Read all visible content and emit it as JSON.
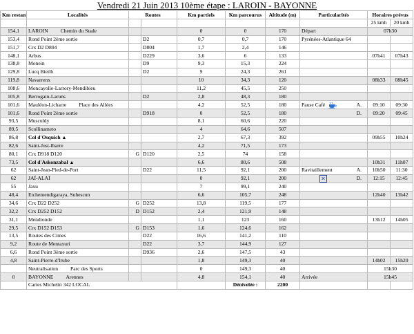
{
  "title": "Vendredi 21 Juin 2013 10ème étape : LAROIN - BAYONNE",
  "headers": {
    "km_restants": "Km restants",
    "localites": "Localités",
    "routes": "Routes",
    "km_partiels": "Km partiels",
    "km_parcourus": "Km parcourus",
    "altitude": "Altitude (m)",
    "particularites": "Particularités",
    "horaires": "Horaires prévus",
    "speed1": "25 kmh",
    "speed2": "20 kmh"
  },
  "rows": [
    {
      "kmr": "154,1",
      "loc": "LAROIN",
      "sub": "Chemin du Stade",
      "dir": "",
      "route": "",
      "kmp": "0",
      "kmc": "0",
      "alt": "170",
      "part": "Départ",
      "pl": "",
      "h1": "07h30",
      "h2": "",
      "style": "bold shade",
      "hspan": true
    },
    {
      "kmr": "153,4",
      "loc": "Rond Point 2ème sortie",
      "sub": "",
      "dir": "",
      "route": "D2",
      "kmp": "0,7",
      "kmc": "0,7",
      "alt": "170",
      "part": "Pyrénées-Atlantique 64",
      "pl": "",
      "h1": "",
      "h2": "",
      "style": ""
    },
    {
      "kmr": "151,7",
      "loc": "Crx D2 D804",
      "sub": "",
      "dir": "",
      "route": "D804",
      "kmp": "1,7",
      "kmc": "2,4",
      "alt": "146",
      "part": "",
      "pl": "",
      "h1": "",
      "h2": "",
      "style": ""
    },
    {
      "kmr": "148,1",
      "loc": "Arbus",
      "sub": "",
      "dir": "",
      "route": "D229",
      "kmp": "3,6",
      "kmc": "6",
      "alt": "133",
      "part": "",
      "pl": "",
      "h1": "07h41",
      "h2": "07h43",
      "style": ""
    },
    {
      "kmr": "138,8",
      "loc": "Monein",
      "sub": "",
      "dir": "",
      "route": "D9",
      "kmp": "9,3",
      "kmc": "15,3",
      "alt": "224",
      "part": "",
      "pl": "",
      "h1": "",
      "h2": "",
      "style": ""
    },
    {
      "kmr": "129,8",
      "loc": "Lucq Bieilh",
      "sub": "",
      "dir": "",
      "route": "D2",
      "kmp": "9",
      "kmc": "24,3",
      "alt": "261",
      "part": "",
      "pl": "",
      "h1": "",
      "h2": "",
      "style": ""
    },
    {
      "kmr": "119,8",
      "loc": "Navarrenx",
      "sub": "",
      "dir": "",
      "route": "",
      "kmp": "10",
      "kmc": "34,3",
      "alt": "120",
      "part": "",
      "pl": "",
      "h1": "08h33",
      "h2": "08h45",
      "style": "shade"
    },
    {
      "kmr": "108,6",
      "loc": "Moncayolle-Larrory-Mendibieu",
      "sub": "",
      "dir": "",
      "route": "",
      "kmp": "11,2",
      "kmc": "45,5",
      "alt": "250",
      "part": "",
      "pl": "",
      "h1": "",
      "h2": "",
      "style": ""
    },
    {
      "kmr": "105,8",
      "loc": "Berrogain-Laruns",
      "sub": "",
      "dir": "",
      "route": "D2",
      "kmp": "2,8",
      "kmc": "48,3",
      "alt": "180",
      "part": "",
      "pl": "",
      "h1": "",
      "h2": "",
      "style": "shade"
    },
    {
      "kmr": "101,6",
      "loc": "Mauléon-Licharre",
      "sub": "Place des Allées",
      "dir": "",
      "route": "",
      "kmp": "4,2",
      "kmc": "52,5",
      "alt": "180",
      "part": "Pause Café",
      "pl": "A.",
      "h1": "09:10",
      "h2": "09:30",
      "style": "bold",
      "icon": "cup"
    },
    {
      "kmr": "101,6",
      "loc": "Rond Point 2ème sortie",
      "sub": "",
      "dir": "",
      "route": "D918",
      "kmp": "0",
      "kmc": "52,5",
      "alt": "180",
      "part": "",
      "pl": "D.",
      "h1": "09:20",
      "h2": "09:45",
      "style": "bold shade"
    },
    {
      "kmr": "93,5",
      "loc": "Musculdy",
      "sub": "",
      "dir": "",
      "route": "",
      "kmp": "8,1",
      "kmc": "60,6",
      "alt": "220",
      "part": "",
      "pl": "",
      "h1": "",
      "h2": "",
      "style": ""
    },
    {
      "kmr": "89,5",
      "loc": "Scollinameto",
      "sub": "",
      "dir": "",
      "route": "",
      "kmp": "4",
      "kmc": "64,6",
      "alt": "507",
      "part": "",
      "pl": "",
      "h1": "",
      "h2": "",
      "style": "shade"
    },
    {
      "kmr": "86,8",
      "loc": "Col d'Osquich",
      "sub": "",
      "tri": "▲",
      "dir": "",
      "route": "",
      "kmp": "2,7",
      "kmc": "67,3",
      "alt": "392",
      "part": "",
      "pl": "",
      "h1": "09h55",
      "h2": "10h24",
      "style": "boldloc"
    },
    {
      "kmr": "82,6",
      "loc": "Saint-Just-Ibarre",
      "sub": "",
      "dir": "",
      "route": "",
      "kmp": "4,2",
      "kmc": "71,5",
      "alt": "173",
      "part": "",
      "pl": "",
      "h1": "",
      "h2": "",
      "style": "shade"
    },
    {
      "kmr": "80,1",
      "loc": "Crx D918 D120",
      "sub": "",
      "dir": "G",
      "route": "D120",
      "kmp": "2,5",
      "kmc": "74",
      "alt": "158",
      "part": "",
      "pl": "",
      "h1": "",
      "h2": "",
      "style": ""
    },
    {
      "kmr": "73,5",
      "loc": "Col d'Askonzabal",
      "sub": "",
      "tri": "▲",
      "dir": "",
      "route": "",
      "kmp": "6,6",
      "kmc": "80,6",
      "alt": "508",
      "part": "",
      "pl": "",
      "h1": "10h31",
      "h2": "11h07",
      "style": "shade boldloc"
    },
    {
      "kmr": "62",
      "loc": "Saint-Jean-Pied-de-Port",
      "sub": "",
      "dir": "",
      "route": "D22",
      "kmp": "11,5",
      "kmc": "92,1",
      "alt": "200",
      "part": "Ravitaillement",
      "pl": "A.",
      "h1": "10h50",
      "h2": "11:30",
      "style": "bold"
    },
    {
      "kmr": "62",
      "loc": "JAÏ-ALAÏ",
      "sub": "",
      "dir": "",
      "route": "",
      "kmp": "0",
      "kmc": "92,1",
      "alt": "200",
      "part": "",
      "pl": "D.",
      "h1": "12:15",
      "h2": "12:45",
      "style": "bold shade",
      "icon": "box"
    },
    {
      "kmr": "55",
      "loc": "Jaxu",
      "sub": "",
      "dir": "",
      "route": "",
      "kmp": "7",
      "kmc": "99,1",
      "alt": "240",
      "part": "",
      "pl": "",
      "h1": "",
      "h2": "",
      "style": ""
    },
    {
      "kmr": "48,4",
      "loc": "Etchemendigaraya, Suhescun",
      "sub": "",
      "dir": "",
      "route": "",
      "kmp": "6,6",
      "kmc": "105,7",
      "alt": "248",
      "part": "",
      "pl": "",
      "h1": "12h40",
      "h2": "13h42",
      "style": "shade"
    },
    {
      "kmr": "34,6",
      "loc": "Crx D22 D252",
      "sub": "",
      "dir": "G",
      "route": "D252",
      "kmp": "13,8",
      "kmc": "119,5",
      "alt": "177",
      "part": "",
      "pl": "",
      "h1": "",
      "h2": "",
      "style": ""
    },
    {
      "kmr": "32,2",
      "loc": "Crx D252 D152",
      "sub": "",
      "dir": "D",
      "route": "D152",
      "kmp": "2,4",
      "kmc": "121,9",
      "alt": "148",
      "part": "",
      "pl": "",
      "h1": "",
      "h2": "",
      "style": "shade"
    },
    {
      "kmr": "31,1",
      "loc": "Mendionde",
      "sub": "",
      "dir": "",
      "route": "",
      "kmp": "1,1",
      "kmc": "123",
      "alt": "160",
      "part": "",
      "pl": "",
      "h1": "13h12",
      "h2": "14h05",
      "style": ""
    },
    {
      "kmr": "29,5",
      "loc": "Crx D152 D153",
      "sub": "",
      "dir": "G",
      "route": "D153",
      "kmp": "1,6",
      "kmc": "124,6",
      "alt": "162",
      "part": "",
      "pl": "",
      "h1": "",
      "h2": "",
      "style": "shade"
    },
    {
      "kmr": "13,5",
      "loc": "Routes des Cimes",
      "sub": "",
      "dir": "",
      "route": "D22",
      "kmp": "16,6",
      "kmc": "141,2",
      "alt": "110",
      "part": "",
      "pl": "",
      "h1": "",
      "h2": "",
      "style": ""
    },
    {
      "kmr": "9,2",
      "loc": "Route de Mentaxuri",
      "sub": "",
      "dir": "",
      "route": "D22",
      "kmp": "3,7",
      "kmc": "144,9",
      "alt": "127",
      "part": "",
      "pl": "",
      "h1": "",
      "h2": "",
      "style": "shade"
    },
    {
      "kmr": "6,6",
      "loc": "Rond Point 3ème sortie",
      "sub": "",
      "dir": "",
      "route": "D936",
      "kmp": "2,6",
      "kmc": "147,5",
      "alt": "43",
      "part": "",
      "pl": "",
      "h1": "",
      "h2": "",
      "style": ""
    },
    {
      "kmr": "4,8",
      "loc": "Saint-Pierre-d'Irube",
      "sub": "",
      "dir": "",
      "route": "",
      "kmp": "1,8",
      "kmc": "149,3",
      "alt": "40",
      "part": "",
      "pl": "",
      "h1": "14h02",
      "h2": "15h20",
      "style": "bold shade"
    },
    {
      "kmr": "",
      "loc": "Neutralisation",
      "sub": "Parc des Sports",
      "dir": "",
      "route": "",
      "kmp": "0",
      "kmc": "149,3",
      "alt": "40",
      "part": "",
      "pl": "",
      "h1": "15h30",
      "h2": "",
      "style": "bold",
      "hspan": true
    },
    {
      "kmr": "0",
      "loc": "BAYONNE",
      "sub": "Arennes",
      "dir": "",
      "route": "",
      "kmp": "4,8",
      "kmc": "154,1",
      "alt": "40",
      "part": "Arrivée",
      "pl": "",
      "h1": "15h45",
      "h2": "",
      "style": "bold shade",
      "hspan": true
    }
  ],
  "footer": {
    "cartes": "Cartes Michelin 342 LOCAL",
    "denivelee_label": "Dénivelée :",
    "denivelee_value": "2200"
  }
}
